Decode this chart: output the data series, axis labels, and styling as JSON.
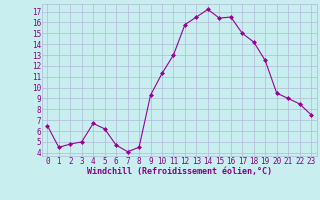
{
  "x": [
    0,
    1,
    2,
    3,
    4,
    5,
    6,
    7,
    8,
    9,
    10,
    11,
    12,
    13,
    14,
    15,
    16,
    17,
    18,
    19,
    20,
    21,
    22,
    23
  ],
  "y": [
    6.5,
    4.5,
    4.8,
    5.0,
    6.7,
    6.2,
    4.7,
    4.1,
    4.5,
    9.3,
    11.3,
    13.0,
    15.8,
    16.5,
    17.2,
    16.4,
    16.5,
    15.0,
    14.2,
    12.5,
    9.5,
    9.0,
    8.5,
    7.5
  ],
  "line_color": "#990099",
  "marker": "D",
  "marker_size": 2.0,
  "bg_color": "#c8eef0",
  "grid_color": "#b0b8d8",
  "xlabel": "Windchill (Refroidissement éolien,°C)",
  "xlabel_color": "#880088",
  "tick_color": "#880088",
  "ylabel_ticks": [
    4,
    5,
    6,
    7,
    8,
    9,
    10,
    11,
    12,
    13,
    14,
    15,
    16,
    17
  ],
  "xlim": [
    -0.5,
    23.5
  ],
  "ylim": [
    3.7,
    17.7
  ],
  "tick_fontsize": 5.5,
  "xlabel_fontsize": 6.0
}
